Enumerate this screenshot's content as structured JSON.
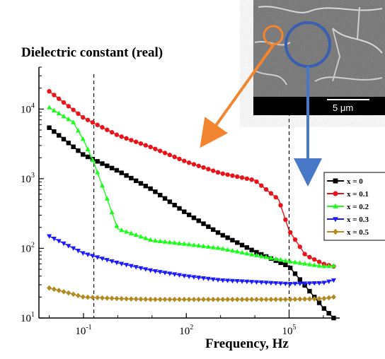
{
  "chart_data": {
    "type": "line",
    "title": "Dielectric constant (real)",
    "xlabel": "Frequency, Hz",
    "ylabel": "",
    "x_scale": "log",
    "y_scale": "log",
    "xlim": [
      0.005,
      3000000
    ],
    "ylim": [
      10,
      40000
    ],
    "x_ticks": [
      {
        "value": 0.1,
        "base": "10",
        "exp": "-1"
      },
      {
        "value": 100,
        "base": "10",
        "exp": "2"
      },
      {
        "value": 100000,
        "base": "10",
        "exp": "5"
      }
    ],
    "y_ticks": [
      {
        "value": 10,
        "base": "10",
        "exp": "1"
      },
      {
        "value": 100,
        "base": "10",
        "exp": "2"
      },
      {
        "value": 1000,
        "base": "10",
        "exp": "3"
      },
      {
        "value": 10000,
        "base": "10",
        "exp": "4"
      }
    ],
    "grid": false,
    "legend_position": "right",
    "vertical_dashed_lines_x": [
      0.2,
      100000
    ],
    "series": [
      {
        "name": "x = 0",
        "color": "#000000",
        "marker": "square",
        "x": [
          0.01,
          0.1,
          1,
          10,
          100,
          1000,
          10000,
          100000,
          1000000,
          2000000
        ],
        "y": [
          5400,
          2200,
          1300,
          700,
          320,
          160,
          90,
          55,
          14,
          10
        ]
      },
      {
        "name": "x = 0.1",
        "color": "#e8141a",
        "marker": "circle",
        "x": [
          0.01,
          0.1,
          1,
          10,
          100,
          1000,
          10000,
          50000,
          100000,
          300000,
          1000000,
          2000000
        ],
        "y": [
          18000,
          7500,
          4200,
          2800,
          1750,
          1200,
          950,
          500,
          180,
          80,
          60,
          55
        ]
      },
      {
        "name": "x = 0.2",
        "color": "#1aff1a",
        "marker": "triangle-up",
        "x": [
          0.01,
          0.05,
          0.1,
          0.2,
          0.5,
          1,
          10,
          100,
          1000,
          10000,
          100000,
          1000000,
          2000000
        ],
        "y": [
          10500,
          6500,
          3600,
          1700,
          500,
          190,
          130,
          115,
          100,
          80,
          65,
          55,
          56
        ]
      },
      {
        "name": "x = 0.3",
        "color": "#1a1aff",
        "marker": "triangle-down",
        "x": [
          0.01,
          0.1,
          1,
          10,
          100,
          1000,
          10000,
          100000,
          1000000,
          2000000
        ],
        "y": [
          150,
          85,
          62,
          48,
          40,
          35,
          33,
          31,
          32,
          35
        ]
      },
      {
        "name": "x = 0.5",
        "color": "#b38a1f",
        "marker": "diamond",
        "x": [
          0.01,
          0.05,
          0.1,
          1,
          10,
          100,
          1000,
          10000,
          100000,
          1000000,
          2000000
        ],
        "y": [
          27,
          22,
          20,
          19,
          18.5,
          18.5,
          18.5,
          18.5,
          18.5,
          19,
          20
        ]
      }
    ]
  },
  "inset": {
    "scale_bar_label": "5 μm"
  }
}
